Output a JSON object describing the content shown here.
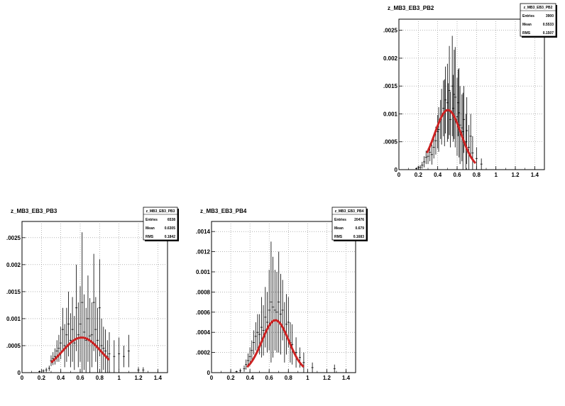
{
  "chart_data": [
    {
      "type": "scatter",
      "title": "z_MB3_EB3_PB2",
      "stats": {
        "name": "z_MB3_EB3_PB2",
        "entries_label": "Entries",
        "entries": "3900",
        "mean_label": "Mean",
        "mean": "0.5533",
        "rms_label": "RMS",
        "rms": "0.1507"
      },
      "xlim": [
        0,
        1.5
      ],
      "ylim": [
        0,
        0.0027
      ],
      "xticks": [
        0,
        0.2,
        0.4,
        0.6,
        0.8,
        1,
        1.2,
        1.4
      ],
      "xtick_labels": [
        "0",
        "0.2",
        "0.4",
        "0.6",
        "0.8",
        "1",
        "1.2",
        "1.4"
      ],
      "yticks": [
        0,
        0.0005,
        0.001,
        0.0015,
        0.002,
        0.0025
      ],
      "ytick_labels": [
        "0",
        ".0005",
        "0.001",
        ".0015",
        "0.002",
        ".0025"
      ],
      "grid": true,
      "fit": {
        "amplitude": 0.00107,
        "mean": 0.505,
        "sigma": 0.135,
        "range": [
          0.29,
          0.79
        ],
        "color": "#cc2222"
      },
      "points": [
        {
          "x": 0.18,
          "y": 2e-05,
          "err": 2e-05
        },
        {
          "x": 0.2,
          "y": 4e-05,
          "err": 3e-05
        },
        {
          "x": 0.22,
          "y": 4e-05,
          "err": 4e-05
        },
        {
          "x": 0.24,
          "y": 8e-05,
          "err": 6e-05
        },
        {
          "x": 0.26,
          "y": 0.00014,
          "err": 0.0001
        },
        {
          "x": 0.28,
          "y": 0.00022,
          "err": 0.00012
        },
        {
          "x": 0.3,
          "y": 0.00024,
          "err": 0.00014
        },
        {
          "x": 0.32,
          "y": 0.00031,
          "err": 0.00016
        },
        {
          "x": 0.34,
          "y": 0.00027,
          "err": 0.00018
        },
        {
          "x": 0.36,
          "y": 0.0004,
          "err": 0.0002
        },
        {
          "x": 0.38,
          "y": 0.00052,
          "err": 0.00025
        },
        {
          "x": 0.4,
          "y": 0.00068,
          "err": 0.0003
        },
        {
          "x": 0.41,
          "y": 0.00072,
          "err": 0.0004
        },
        {
          "x": 0.43,
          "y": 0.0009,
          "err": 0.00035
        },
        {
          "x": 0.44,
          "y": 0.00095,
          "err": 0.0005
        },
        {
          "x": 0.46,
          "y": 0.0011,
          "err": 0.0005
        },
        {
          "x": 0.47,
          "y": 0.00102,
          "err": 0.0006
        },
        {
          "x": 0.48,
          "y": 0.00125,
          "err": 0.0006
        },
        {
          "x": 0.5,
          "y": 0.0012,
          "err": 0.0007
        },
        {
          "x": 0.51,
          "y": 0.00105,
          "err": 0.0005
        },
        {
          "x": 0.52,
          "y": 0.00142,
          "err": 0.0008
        },
        {
          "x": 0.53,
          "y": 0.0009,
          "err": 0.0005
        },
        {
          "x": 0.55,
          "y": 0.0015,
          "err": 0.0009
        },
        {
          "x": 0.56,
          "y": 0.0011,
          "err": 0.0006
        },
        {
          "x": 0.57,
          "y": 0.00135,
          "err": 0.0008
        },
        {
          "x": 0.58,
          "y": 0.0013,
          "err": 0.0009
        },
        {
          "x": 0.6,
          "y": 0.00095,
          "err": 0.0007
        },
        {
          "x": 0.61,
          "y": 0.0012,
          "err": 0.0006
        },
        {
          "x": 0.62,
          "y": 0.00102,
          "err": 0.0008
        },
        {
          "x": 0.63,
          "y": 0.0008,
          "err": 0.0007
        },
        {
          "x": 0.65,
          "y": 0.00075,
          "err": 0.0006
        },
        {
          "x": 0.66,
          "y": 0.00068,
          "err": 0.0007
        },
        {
          "x": 0.67,
          "y": 0.0009,
          "err": 0.0006
        },
        {
          "x": 0.69,
          "y": 0.0005,
          "err": 0.0005
        },
        {
          "x": 0.7,
          "y": 0.0007,
          "err": 0.0006
        },
        {
          "x": 0.72,
          "y": 0.0004,
          "err": 0.0004
        },
        {
          "x": 0.74,
          "y": 0.0006,
          "err": 0.0004
        },
        {
          "x": 0.76,
          "y": 0.0003,
          "err": 0.0003
        },
        {
          "x": 0.8,
          "y": 0.0002,
          "err": 0.0002
        },
        {
          "x": 0.85,
          "y": 0.0001,
          "err": 0.0001
        }
      ]
    },
    {
      "type": "scatter",
      "title": "z_MB3_EB3_PB3",
      "stats": {
        "name": "z_MB3_EB3_PB3",
        "entries_label": "Entries",
        "entries": "6538",
        "mean_label": "Mean",
        "mean": "0.6305",
        "rms_label": "RMS",
        "rms": "0.1842"
      },
      "xlim": [
        0,
        1.5
      ],
      "ylim": [
        0,
        0.0028
      ],
      "xticks": [
        0,
        0.2,
        0.4,
        0.6,
        0.8,
        1,
        1.2,
        1.4
      ],
      "xtick_labels": [
        "0",
        "0.2",
        "0.4",
        "0.6",
        "0.8",
        "1",
        "1.2",
        "1.4"
      ],
      "yticks": [
        0,
        0.0005,
        0.001,
        0.0015,
        0.002,
        0.0025
      ],
      "ytick_labels": [
        "0",
        ".0005",
        "0.001",
        ".0015",
        "0.002",
        ".0025"
      ],
      "grid": true,
      "fit": {
        "amplitude": 0.00065,
        "mean": 0.615,
        "sigma": 0.2,
        "range": [
          0.3,
          0.9
        ],
        "color": "#cc2222"
      },
      "points": [
        {
          "x": 0.18,
          "y": 2e-05,
          "err": 2e-05
        },
        {
          "x": 0.22,
          "y": 3e-05,
          "err": 3e-05
        },
        {
          "x": 0.25,
          "y": 5e-05,
          "err": 4e-05
        },
        {
          "x": 0.28,
          "y": 8e-05,
          "err": 5e-05
        },
        {
          "x": 0.3,
          "y": 0.00022,
          "err": 0.0001
        },
        {
          "x": 0.32,
          "y": 0.00026,
          "err": 0.00012
        },
        {
          "x": 0.34,
          "y": 0.0003,
          "err": 0.00015
        },
        {
          "x": 0.36,
          "y": 0.0004,
          "err": 0.0002
        },
        {
          "x": 0.38,
          "y": 0.00045,
          "err": 0.00025
        },
        {
          "x": 0.4,
          "y": 0.00055,
          "err": 0.0003
        },
        {
          "x": 0.42,
          "y": 0.0008,
          "err": 0.0004
        },
        {
          "x": 0.44,
          "y": 0.0005,
          "err": 0.0004
        },
        {
          "x": 0.46,
          "y": 0.0007,
          "err": 0.0005
        },
        {
          "x": 0.48,
          "y": 0.0009,
          "err": 0.0006
        },
        {
          "x": 0.5,
          "y": 0.0006,
          "err": 0.0005
        },
        {
          "x": 0.52,
          "y": 0.0008,
          "err": 0.0006
        },
        {
          "x": 0.54,
          "y": 0.00055,
          "err": 0.0005
        },
        {
          "x": 0.56,
          "y": 0.0012,
          "err": 0.0008
        },
        {
          "x": 0.58,
          "y": 0.0007,
          "err": 0.0006
        },
        {
          "x": 0.6,
          "y": 0.0009,
          "err": 0.0007
        },
        {
          "x": 0.62,
          "y": 0.0013,
          "err": 0.0013
        },
        {
          "x": 0.64,
          "y": 0.00075,
          "err": 0.0007
        },
        {
          "x": 0.66,
          "y": 0.0006,
          "err": 0.0006
        },
        {
          "x": 0.68,
          "y": 0.001,
          "err": 0.0008
        },
        {
          "x": 0.7,
          "y": 0.00068,
          "err": 0.0007
        },
        {
          "x": 0.72,
          "y": 0.0007,
          "err": 0.0006
        },
        {
          "x": 0.74,
          "y": 0.0013,
          "err": 0.0009
        },
        {
          "x": 0.76,
          "y": 0.0008,
          "err": 0.0006
        },
        {
          "x": 0.78,
          "y": 0.0006,
          "err": 0.0006
        },
        {
          "x": 0.8,
          "y": 0.0012,
          "err": 0.0009
        },
        {
          "x": 0.82,
          "y": 0.0005,
          "err": 0.0005
        },
        {
          "x": 0.84,
          "y": 0.00045,
          "err": 0.0004
        },
        {
          "x": 0.86,
          "y": 0.0004,
          "err": 0.0004
        },
        {
          "x": 0.88,
          "y": 0.0003,
          "err": 0.0003
        },
        {
          "x": 0.9,
          "y": 0.00035,
          "err": 0.0004
        },
        {
          "x": 0.95,
          "y": 0.0003,
          "err": 0.0003
        },
        {
          "x": 1.0,
          "y": 0.00035,
          "err": 0.0003
        },
        {
          "x": 1.05,
          "y": 0.0003,
          "err": 0.0002
        },
        {
          "x": 1.1,
          "y": 0.0004,
          "err": 0.0003
        },
        {
          "x": 1.2,
          "y": 5e-05,
          "err": 5e-05
        },
        {
          "x": 1.25,
          "y": 5e-05,
          "err": 5e-05
        }
      ]
    },
    {
      "type": "scatter",
      "title": "z_MB3_EB3_PB4",
      "stats": {
        "name": "z_MB3_EB3_PB4",
        "entries_label": "Entries",
        "entries": "20476",
        "mean_label": "Mean",
        "mean": "0.679",
        "rms_label": "RMS",
        "rms": "0.1683"
      },
      "xlim": [
        0,
        1.5
      ],
      "ylim": [
        0,
        0.0015
      ],
      "xticks": [
        0,
        0.2,
        0.4,
        0.6,
        0.8,
        1,
        1.2,
        1.4
      ],
      "xtick_labels": [
        "0",
        "0.2",
        "0.4",
        "0.6",
        "0.8",
        "1",
        "1.2",
        "1.4"
      ],
      "yticks": [
        0,
        0.0002,
        0.0004,
        0.0006,
        0.0008,
        0.001,
        0.0012,
        0.0014
      ],
      "ytick_labels": [
        "0",
        ".0002",
        ".0004",
        ".0006",
        ".0008",
        "0.001",
        ".0012",
        ".0014"
      ],
      "grid": true,
      "fit": {
        "amplitude": 0.00052,
        "mean": 0.665,
        "sigma": 0.14,
        "range": [
          0.37,
          0.96
        ],
        "color": "#cc2222"
      },
      "points": [
        {
          "x": 0.26,
          "y": 1e-05,
          "err": 1e-05
        },
        {
          "x": 0.3,
          "y": 2e-05,
          "err": 2e-05
        },
        {
          "x": 0.34,
          "y": 4e-05,
          "err": 3e-05
        },
        {
          "x": 0.36,
          "y": 8e-05,
          "err": 5e-05
        },
        {
          "x": 0.38,
          "y": 0.00012,
          "err": 7e-05
        },
        {
          "x": 0.4,
          "y": 0.00016,
          "err": 9e-05
        },
        {
          "x": 0.42,
          "y": 0.00022,
          "err": 0.0001
        },
        {
          "x": 0.44,
          "y": 0.0003,
          "err": 0.00012
        },
        {
          "x": 0.46,
          "y": 0.00036,
          "err": 0.00014
        },
        {
          "x": 0.48,
          "y": 0.0004,
          "err": 0.00018
        },
        {
          "x": 0.5,
          "y": 0.00038,
          "err": 0.0002
        },
        {
          "x": 0.52,
          "y": 0.00045,
          "err": 0.0003
        },
        {
          "x": 0.54,
          "y": 0.00042,
          "err": 0.00025
        },
        {
          "x": 0.56,
          "y": 0.00055,
          "err": 0.0003
        },
        {
          "x": 0.58,
          "y": 0.0005,
          "err": 0.0003
        },
        {
          "x": 0.6,
          "y": 0.00062,
          "err": 0.0004
        },
        {
          "x": 0.62,
          "y": 0.0007,
          "err": 0.0006
        },
        {
          "x": 0.64,
          "y": 0.00065,
          "err": 0.0005
        },
        {
          "x": 0.66,
          "y": 0.00062,
          "err": 0.0004
        },
        {
          "x": 0.68,
          "y": 0.0006,
          "err": 0.0004
        },
        {
          "x": 0.7,
          "y": 0.0007,
          "err": 0.0005
        },
        {
          "x": 0.72,
          "y": 0.00058,
          "err": 0.0004
        },
        {
          "x": 0.74,
          "y": 0.00062,
          "err": 0.0003
        },
        {
          "x": 0.76,
          "y": 0.0004,
          "err": 0.0003
        },
        {
          "x": 0.78,
          "y": 0.00048,
          "err": 0.0003
        },
        {
          "x": 0.8,
          "y": 0.0005,
          "err": 0.00025
        },
        {
          "x": 0.82,
          "y": 0.0003,
          "err": 0.0002
        },
        {
          "x": 0.84,
          "y": 0.00028,
          "err": 0.0002
        },
        {
          "x": 0.88,
          "y": 0.0002,
          "err": 0.00015
        },
        {
          "x": 0.92,
          "y": 0.00015,
          "err": 0.0001
        },
        {
          "x": 0.96,
          "y": 0.0001,
          "err": 0.0001
        },
        {
          "x": 1.05,
          "y": 5e-05,
          "err": 5e-05
        },
        {
          "x": 1.28,
          "y": 4e-05,
          "err": 4e-05
        }
      ]
    }
  ]
}
